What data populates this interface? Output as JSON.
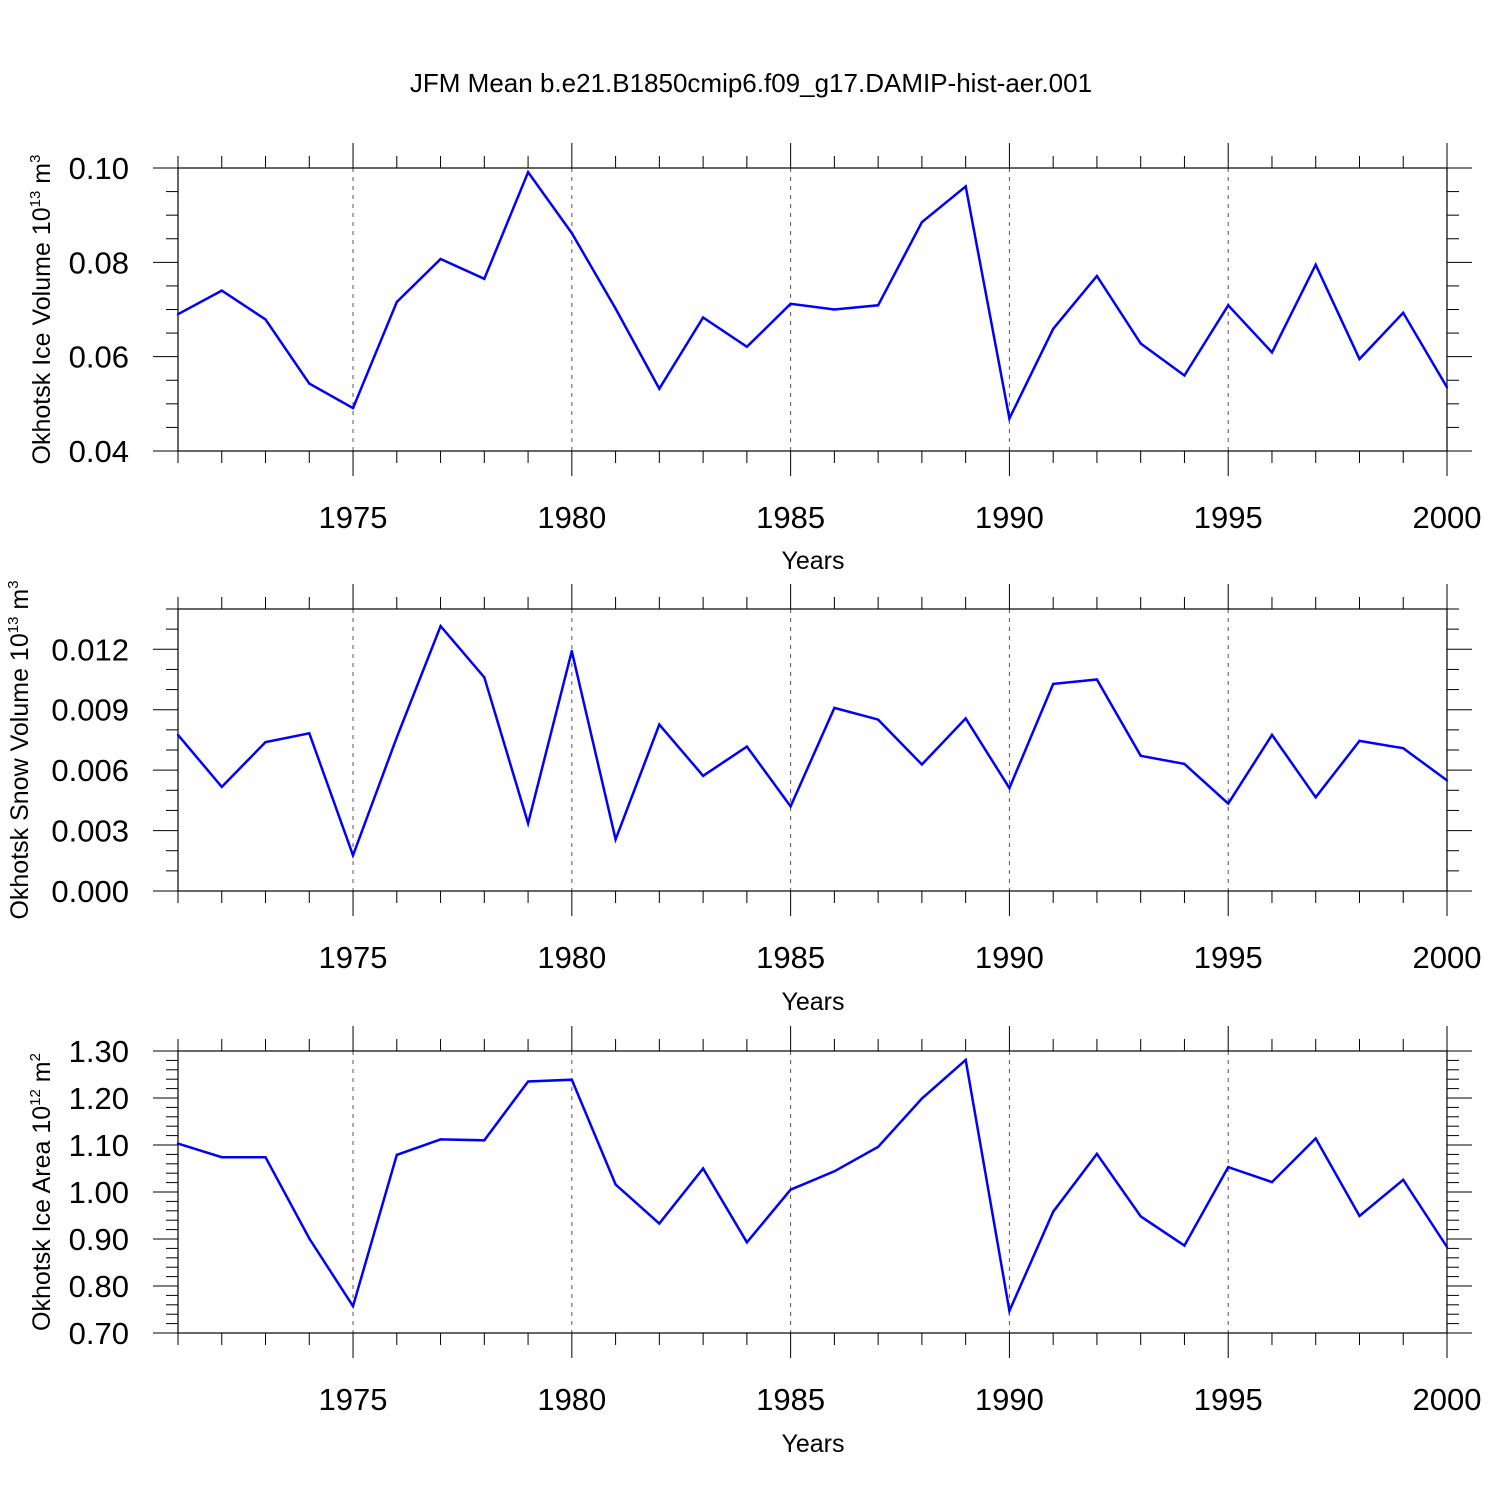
{
  "title": "JFM Mean b.e21.B1850cmip6.f09_g17.DAMIP-hist-aer.001",
  "line_color": "#0000ff",
  "chart_data": [
    {
      "type": "line",
      "name": "ice-volume",
      "title": "JFM Mean b.e21.B1850cmip6.f09_g17.DAMIP-hist-aer.001",
      "xlabel": "Years",
      "ylabel_main": "Okhotsk Ice Volume 10",
      "ylabel_exp": "13",
      "ylabel_unit": " m",
      "ylabel_unit_exp": "3",
      "xlim": [
        1971,
        2000
      ],
      "ylim": [
        0.04,
        0.1
      ],
      "xticks": [
        1975,
        1980,
        1985,
        1990,
        1995,
        2000
      ],
      "yticks": [
        0.04,
        0.06,
        0.08,
        0.1
      ],
      "ytick_labels": [
        "0.04",
        "0.06",
        "0.08",
        "0.10"
      ],
      "yminor_step": 0.005,
      "grid": "vertical dashed at major x ticks",
      "x": [
        1971,
        1972,
        1973,
        1974,
        1975,
        1976,
        1977,
        1978,
        1979,
        1980,
        1981,
        1982,
        1983,
        1984,
        1985,
        1986,
        1987,
        1988,
        1989,
        1990,
        1991,
        1992,
        1993,
        1994,
        1995,
        1996,
        1997,
        1998,
        1999,
        2000
      ],
      "values": [
        0.069,
        0.074,
        0.0679,
        0.0543,
        0.0491,
        0.0716,
        0.0807,
        0.0765,
        0.0991,
        0.0862,
        0.0702,
        0.0532,
        0.0683,
        0.0621,
        0.0712,
        0.07,
        0.0709,
        0.0885,
        0.0961,
        0.0469,
        0.0659,
        0.0771,
        0.0628,
        0.056,
        0.0709,
        0.0609,
        0.0795,
        0.0595,
        0.0693,
        0.0535
      ]
    },
    {
      "type": "line",
      "name": "snow-volume",
      "xlabel": "Years",
      "ylabel_main": "Okhotsk Snow Volume 10",
      "ylabel_exp": "13",
      "ylabel_unit": " m",
      "ylabel_unit_exp": "3",
      "xlim": [
        1971,
        2000
      ],
      "ylim": [
        0.0,
        0.014
      ],
      "xticks": [
        1975,
        1980,
        1985,
        1990,
        1995,
        2000
      ],
      "yticks": [
        0.0,
        0.003,
        0.006,
        0.009,
        0.012
      ],
      "ytick_labels": [
        "0.000",
        "0.003",
        "0.006",
        "0.009",
        "0.012"
      ],
      "yminor_step": 0.001,
      "grid": "vertical dashed at major x ticks",
      "x": [
        1971,
        1972,
        1973,
        1974,
        1975,
        1976,
        1977,
        1978,
        1979,
        1980,
        1981,
        1982,
        1983,
        1984,
        1985,
        1986,
        1987,
        1988,
        1989,
        1990,
        1991,
        1992,
        1993,
        1994,
        1995,
        1996,
        1997,
        1998,
        1999,
        2000
      ],
      "values": [
        0.00775,
        0.00517,
        0.00739,
        0.00783,
        0.00177,
        0.00763,
        0.01315,
        0.01061,
        0.00336,
        0.01191,
        0.00256,
        0.00826,
        0.00572,
        0.00717,
        0.0042,
        0.00909,
        0.00851,
        0.00628,
        0.00857,
        0.00511,
        0.01028,
        0.0105,
        0.00671,
        0.00631,
        0.00434,
        0.00775,
        0.00465,
        0.00745,
        0.00709,
        0.00549
      ]
    },
    {
      "type": "line",
      "name": "ice-area",
      "xlabel": "Years",
      "ylabel_main": "Okhotsk Ice Area 10",
      "ylabel_exp": "12",
      "ylabel_unit": " m",
      "ylabel_unit_exp": "2",
      "xlim": [
        1971,
        2000
      ],
      "ylim": [
        0.7,
        1.3
      ],
      "xticks": [
        1975,
        1980,
        1985,
        1990,
        1995,
        2000
      ],
      "yticks": [
        0.7,
        0.8,
        0.9,
        1.0,
        1.1,
        1.2,
        1.3
      ],
      "ytick_labels": [
        "0.70",
        "0.80",
        "0.90",
        "1.00",
        "1.10",
        "1.20",
        "1.30"
      ],
      "yminor_step": 0.02,
      "grid": "vertical dashed at major x ticks",
      "x": [
        1971,
        1972,
        1973,
        1974,
        1975,
        1976,
        1977,
        1978,
        1979,
        1980,
        1981,
        1982,
        1983,
        1984,
        1985,
        1986,
        1987,
        1988,
        1989,
        1990,
        1991,
        1992,
        1993,
        1994,
        1995,
        1996,
        1997,
        1998,
        1999,
        2000
      ],
      "values": [
        1.103,
        1.074,
        1.074,
        0.901,
        0.757,
        1.079,
        1.112,
        1.11,
        1.235,
        1.239,
        1.016,
        0.933,
        1.05,
        0.893,
        1.005,
        1.044,
        1.096,
        1.199,
        1.281,
        0.747,
        0.958,
        1.081,
        0.948,
        0.886,
        1.053,
        1.021,
        1.114,
        0.949,
        1.026,
        0.883
      ]
    }
  ]
}
